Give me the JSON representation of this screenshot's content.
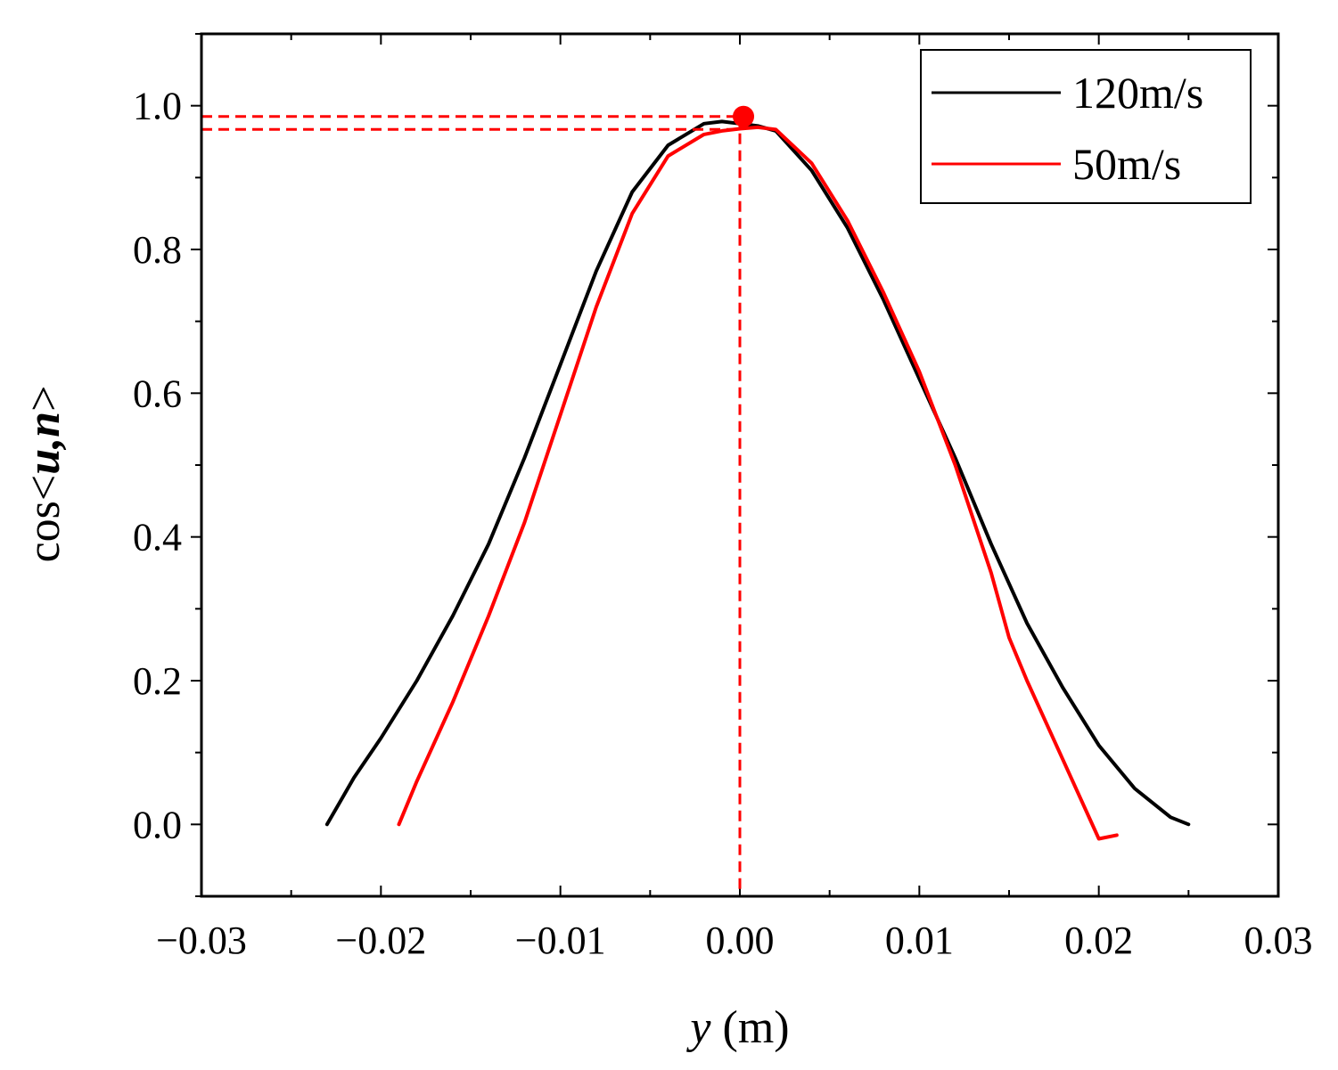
{
  "chart_data": {
    "type": "line",
    "xlabel_var": "y",
    "xlabel_unit": " (m)",
    "ylabel_prefix": "cos<",
    "ylabel_vars": "u,n",
    "ylabel_suffix": ">",
    "xlim": [
      -0.03,
      0.03
    ],
    "ylim": [
      -0.1,
      1.1
    ],
    "xticks": [
      -0.03,
      -0.02,
      -0.01,
      0.0,
      0.01,
      0.02,
      0.03
    ],
    "xtick_labels": [
      "−0.03",
      "−0.02",
      "−0.01",
      "0.00",
      "0.01",
      "0.02",
      "0.03"
    ],
    "yticks": [
      0.0,
      0.2,
      0.4,
      0.6,
      0.8,
      1.0
    ],
    "ytick_labels": [
      "0.0",
      "0.2",
      "0.4",
      "0.6",
      "0.8",
      "1.0"
    ],
    "legend_position": "top-right",
    "series": [
      {
        "name": "120m/s",
        "color": "#000000",
        "x": [
          -0.023,
          -0.0215,
          -0.02,
          -0.018,
          -0.016,
          -0.014,
          -0.012,
          -0.01,
          -0.008,
          -0.006,
          -0.004,
          -0.002,
          -0.001,
          0.0,
          0.001,
          0.002,
          0.004,
          0.006,
          0.008,
          0.01,
          0.012,
          0.014,
          0.016,
          0.018,
          0.02,
          0.022,
          0.024,
          0.025
        ],
        "y": [
          0.0,
          0.065,
          0.12,
          0.2,
          0.29,
          0.39,
          0.51,
          0.64,
          0.77,
          0.88,
          0.945,
          0.975,
          0.978,
          0.975,
          0.972,
          0.965,
          0.91,
          0.83,
          0.73,
          0.62,
          0.51,
          0.39,
          0.28,
          0.19,
          0.11,
          0.05,
          0.01,
          0.0
        ]
      },
      {
        "name": "50m/s",
        "color": "#ff0000",
        "x": [
          -0.019,
          -0.018,
          -0.016,
          -0.014,
          -0.012,
          -0.01,
          -0.008,
          -0.006,
          -0.004,
          -0.002,
          -0.001,
          0.0,
          0.001,
          0.002,
          0.004,
          0.006,
          0.008,
          0.01,
          0.012,
          0.014,
          0.015,
          0.016,
          0.018,
          0.02,
          0.021
        ],
        "y": [
          0.0,
          0.06,
          0.17,
          0.29,
          0.42,
          0.57,
          0.72,
          0.85,
          0.93,
          0.96,
          0.965,
          0.968,
          0.97,
          0.967,
          0.92,
          0.84,
          0.74,
          0.63,
          0.5,
          0.35,
          0.26,
          0.2,
          0.09,
          -0.02,
          -0.015
        ]
      }
    ],
    "annotations": {
      "peak_marker": {
        "x": 0.0002,
        "y": 0.985,
        "color": "#ff0000"
      },
      "hlines": [
        0.985,
        0.967
      ],
      "vline_x": 0.0
    }
  }
}
